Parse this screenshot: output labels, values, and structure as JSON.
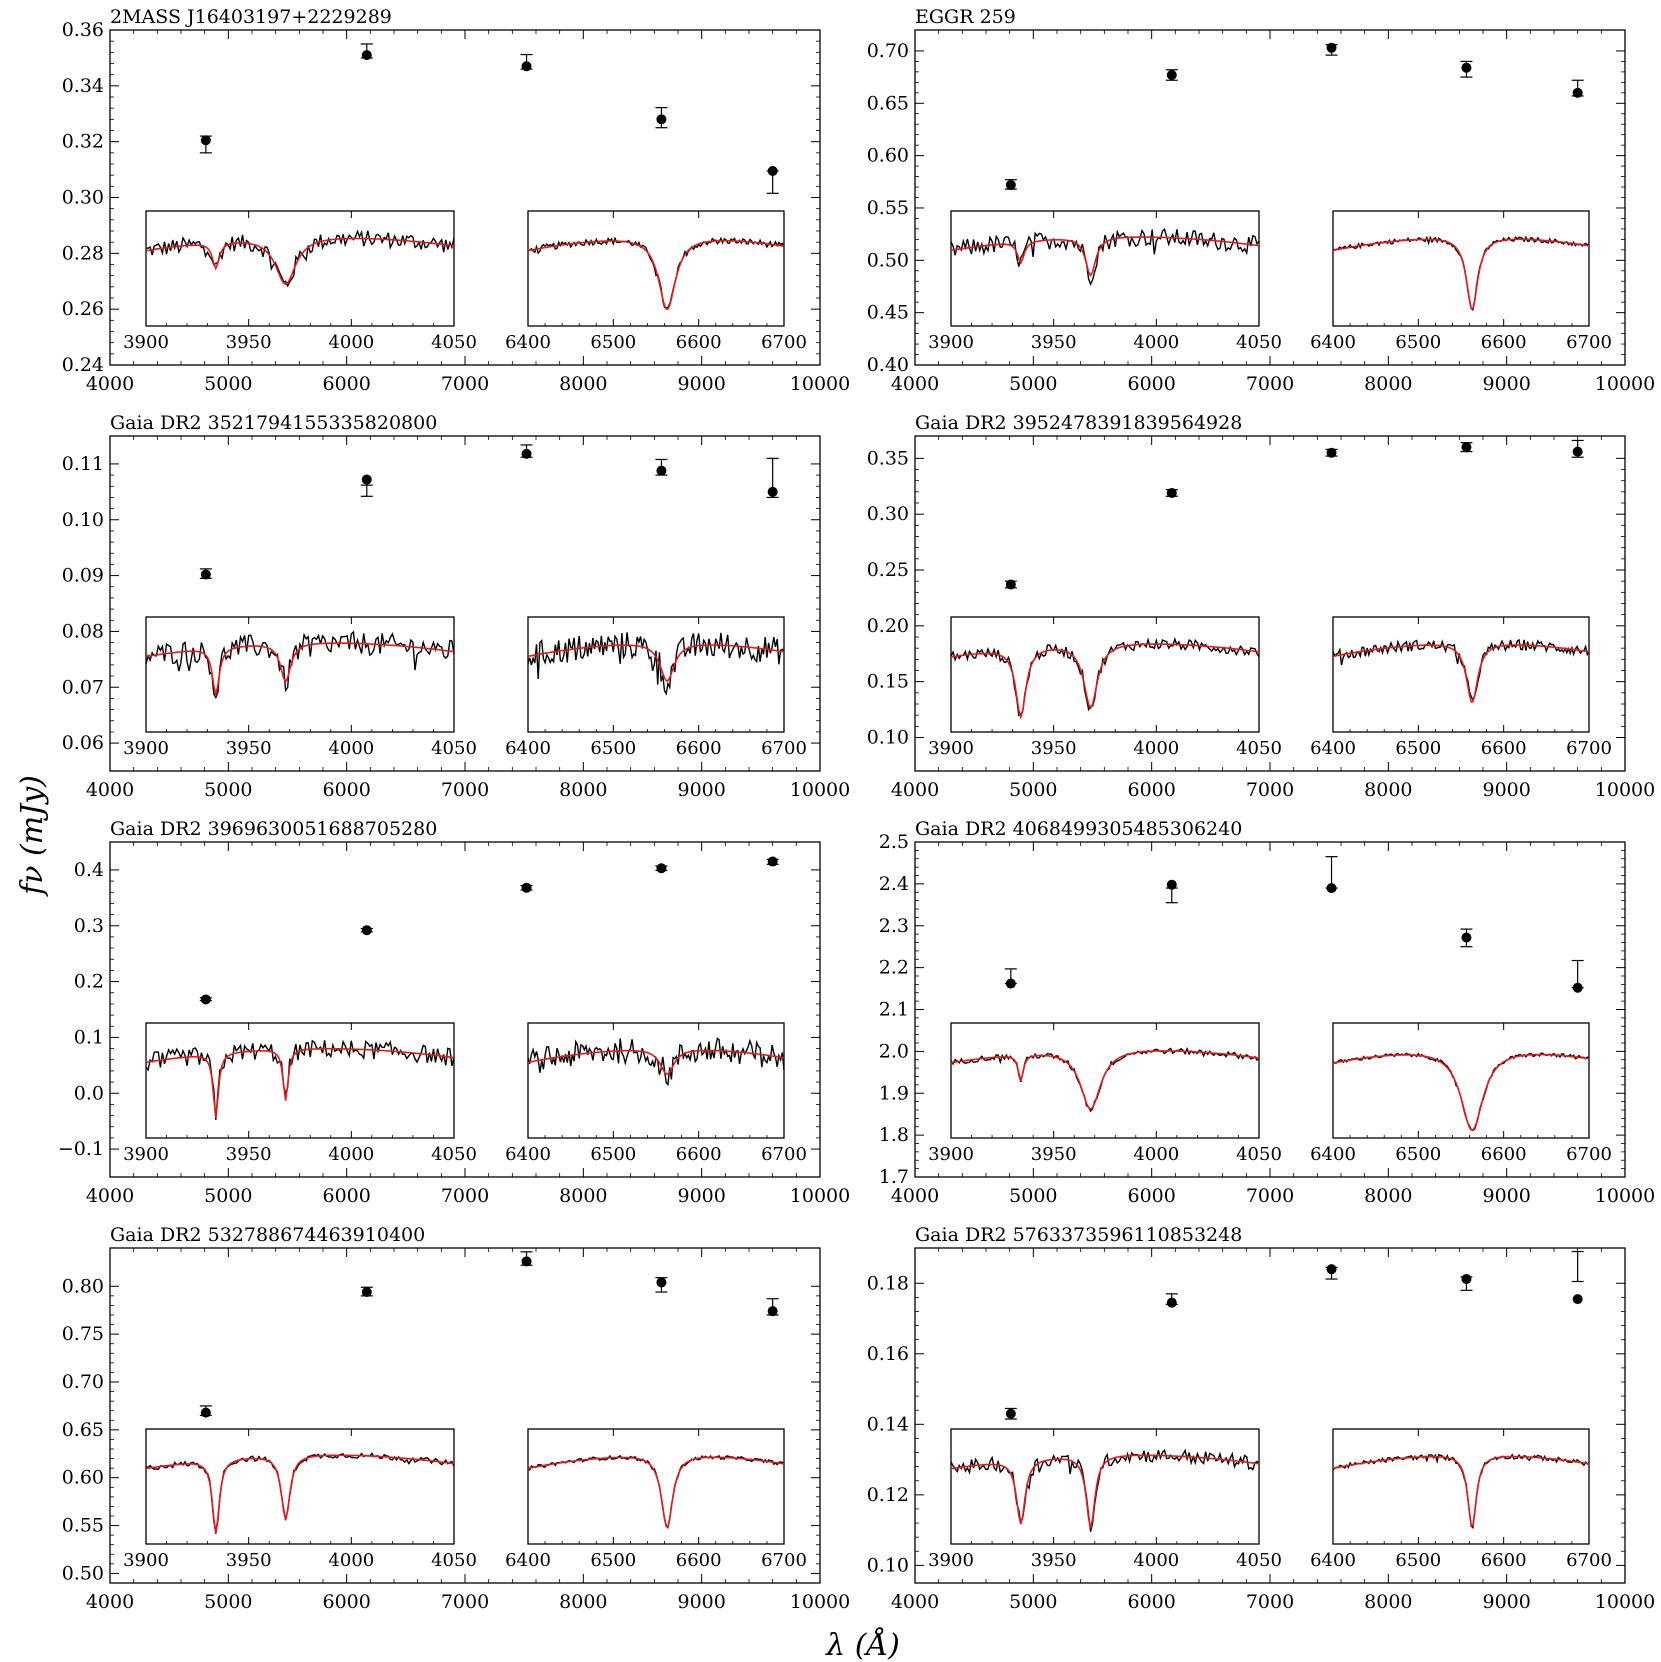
{
  "figure": {
    "ylabel": "fν (mJy)",
    "xlabel": "λ (Å)"
  },
  "chart_data": [
    {
      "type": "scatter",
      "title": "2MASS J16403197+2229289",
      "xlim": [
        4000,
        10000
      ],
      "xticks": [
        4000,
        5000,
        6000,
        7000,
        8000,
        9000,
        10000
      ],
      "ylim": [
        0.24,
        0.36
      ],
      "yticks": [
        0.24,
        0.26,
        0.28,
        0.3,
        0.32,
        0.34,
        0.36
      ],
      "yticklabels": [
        "0.24",
        "0.26",
        "0.28",
        "0.30",
        "0.32",
        "0.34",
        "0.36"
      ],
      "points": [
        {
          "x": 4810,
          "y": 0.3205,
          "err_lo": 0.316,
          "err_hi": 0.322
        },
        {
          "x": 6170,
          "y": 0.351,
          "err_lo": 0.35,
          "err_hi": 0.355
        },
        {
          "x": 7520,
          "y": 0.347,
          "err_lo": 0.346,
          "err_hi": 0.3512
        },
        {
          "x": 8660,
          "y": 0.328,
          "err_lo": 0.325,
          "err_hi": 0.3322
        },
        {
          "x": 9600,
          "y": 0.3095,
          "err_lo": 0.3015,
          "err_hi": 0.3095
        }
      ],
      "insets": [
        {
          "xlim": [
            3900,
            4050
          ],
          "xticks": [
            3900,
            3950,
            4000,
            4050
          ],
          "lines": [
            {
              "center": 3934,
              "depth": 0.3,
              "width": 2
            },
            {
              "center": 3968,
              "depth": 0.55,
              "width": 6
            }
          ],
          "noise": 0.18
        },
        {
          "xlim": [
            6400,
            6700
          ],
          "xticks": [
            6400,
            6500,
            6600,
            6700
          ],
          "lines": [
            {
              "center": 6563,
              "depth": 0.85,
              "width": 6
            }
          ],
          "noise": 0.07
        }
      ]
    },
    {
      "type": "scatter",
      "title": "EGGR 259",
      "xlim": [
        4000,
        10000
      ],
      "xticks": [
        4000,
        5000,
        6000,
        7000,
        8000,
        9000,
        10000
      ],
      "ylim": [
        0.4,
        0.72
      ],
      "yticks": [
        0.4,
        0.45,
        0.5,
        0.55,
        0.6,
        0.65,
        0.7
      ],
      "yticklabels": [
        "0.40",
        "0.45",
        "0.50",
        "0.55",
        "0.60",
        "0.65",
        "0.70"
      ],
      "points": [
        {
          "x": 4810,
          "y": 0.572,
          "err_lo": 0.568,
          "err_hi": 0.577
        },
        {
          "x": 6170,
          "y": 0.677,
          "err_lo": 0.672,
          "err_hi": 0.682
        },
        {
          "x": 7520,
          "y": 0.703,
          "err_lo": 0.696,
          "err_hi": 0.706
        },
        {
          "x": 8660,
          "y": 0.684,
          "err_lo": 0.675,
          "err_hi": 0.69
        },
        {
          "x": 9600,
          "y": 0.66,
          "err_lo": 0.657,
          "err_hi": 0.672
        }
      ],
      "insets": [
        {
          "xlim": [
            3900,
            4050
          ],
          "xticks": [
            3900,
            3950,
            4000,
            4050
          ],
          "lines": [
            {
              "center": 3934,
              "depth": 0.25,
              "width": 2
            },
            {
              "center": 3968,
              "depth": 0.45,
              "width": 3
            }
          ],
          "noise": 0.2
        },
        {
          "xlim": [
            6400,
            6700
          ],
          "xticks": [
            6400,
            6500,
            6600,
            6700
          ],
          "lines": [
            {
              "center": 6563,
              "depth": 0.85,
              "width": 4
            }
          ],
          "noise": 0.05
        }
      ]
    },
    {
      "type": "scatter",
      "title": "Gaia DR2 3521794155335820800",
      "xlim": [
        4000,
        10000
      ],
      "xticks": [
        4000,
        5000,
        6000,
        7000,
        8000,
        9000,
        10000
      ],
      "ylim": [
        0.055,
        0.115
      ],
      "yticks": [
        0.06,
        0.07,
        0.08,
        0.09,
        0.1,
        0.11
      ],
      "yticklabels": [
        "0.06",
        "0.07",
        "0.08",
        "0.09",
        "0.10",
        "0.11"
      ],
      "points": [
        {
          "x": 4810,
          "y": 0.0902,
          "err_lo": 0.0895,
          "err_hi": 0.0912
        },
        {
          "x": 6170,
          "y": 0.1072,
          "err_lo": 0.1042,
          "err_hi": 0.1062
        },
        {
          "x": 7520,
          "y": 0.1118,
          "err_lo": 0.1112,
          "err_hi": 0.1134
        },
        {
          "x": 8660,
          "y": 0.1088,
          "err_lo": 0.108,
          "err_hi": 0.1108
        },
        {
          "x": 9600,
          "y": 0.105,
          "err_lo": 0.104,
          "err_hi": 0.111
        }
      ],
      "insets": [
        {
          "xlim": [
            3900,
            4050
          ],
          "xticks": [
            3900,
            3950,
            4000,
            4050
          ],
          "lines": [
            {
              "center": 3934,
              "depth": 0.55,
              "width": 2
            },
            {
              "center": 3968,
              "depth": 0.45,
              "width": 3
            }
          ],
          "noise": 0.25
        },
        {
          "xlim": [
            6400,
            6700
          ],
          "xticks": [
            6400,
            6500,
            6600,
            6700
          ],
          "lines": [
            {
              "center": 6563,
              "depth": 0.45,
              "width": 5
            }
          ],
          "noise": 0.3
        }
      ]
    },
    {
      "type": "scatter",
      "title": "Gaia DR2 3952478391839564928",
      "xlim": [
        4000,
        10000
      ],
      "xticks": [
        4000,
        5000,
        6000,
        7000,
        8000,
        9000,
        10000
      ],
      "ylim": [
        0.07,
        0.37
      ],
      "yticks": [
        0.1,
        0.15,
        0.2,
        0.25,
        0.3,
        0.35
      ],
      "yticklabels": [
        "0.10",
        "0.15",
        "0.20",
        "0.25",
        "0.30",
        "0.35"
      ],
      "points": [
        {
          "x": 4810,
          "y": 0.237,
          "err_lo": 0.234,
          "err_hi": 0.24
        },
        {
          "x": 6170,
          "y": 0.319,
          "err_lo": 0.316,
          "err_hi": 0.322
        },
        {
          "x": 7520,
          "y": 0.355,
          "err_lo": 0.352,
          "err_hi": 0.358
        },
        {
          "x": 8660,
          "y": 0.36,
          "err_lo": 0.356,
          "err_hi": 0.364
        },
        {
          "x": 9600,
          "y": 0.356,
          "err_lo": 0.351,
          "err_hi": 0.366
        }
      ],
      "insets": [
        {
          "xlim": [
            3900,
            4050
          ],
          "xticks": [
            3900,
            3950,
            4000,
            4050
          ],
          "lines": [
            {
              "center": 3934,
              "depth": 0.8,
              "width": 3
            },
            {
              "center": 3968,
              "depth": 0.75,
              "width": 4
            }
          ],
          "noise": 0.12
        },
        {
          "xlim": [
            6400,
            6700
          ],
          "xticks": [
            6400,
            6500,
            6600,
            6700
          ],
          "lines": [
            {
              "center": 6563,
              "depth": 0.7,
              "width": 4
            }
          ],
          "noise": 0.12
        }
      ]
    },
    {
      "type": "scatter",
      "title": "Gaia DR2 3969630051688705280",
      "xlim": [
        4000,
        10000
      ],
      "xticks": [
        4000,
        5000,
        6000,
        7000,
        8000,
        9000,
        10000
      ],
      "ylim": [
        -0.15,
        0.45
      ],
      "yticks": [
        -0.1,
        0.0,
        0.1,
        0.2,
        0.3,
        0.4
      ],
      "yticklabels": [
        "−0.1",
        "0.0",
        "0.1",
        "0.2",
        "0.3",
        "0.4"
      ],
      "points": [
        {
          "x": 4810,
          "y": 0.168,
          "err_lo": 0.166,
          "err_hi": 0.171
        },
        {
          "x": 6170,
          "y": 0.292,
          "err_lo": 0.289,
          "err_hi": 0.295
        },
        {
          "x": 7520,
          "y": 0.368,
          "err_lo": 0.364,
          "err_hi": 0.372
        },
        {
          "x": 8660,
          "y": 0.403,
          "err_lo": 0.399,
          "err_hi": 0.407
        },
        {
          "x": 9600,
          "y": 0.415,
          "err_lo": 0.41,
          "err_hi": 0.419
        }
      ],
      "insets": [
        {
          "xlim": [
            3900,
            4050
          ],
          "xticks": [
            3900,
            3950,
            4000,
            4050
          ],
          "lines": [
            {
              "center": 3934,
              "depth": 0.75,
              "width": 1.5
            },
            {
              "center": 3968,
              "depth": 0.6,
              "width": 1.5
            }
          ],
          "noise": 0.2
        },
        {
          "xlim": [
            6400,
            6700
          ],
          "xticks": [
            6400,
            6500,
            6600,
            6700
          ],
          "lines": [
            {
              "center": 6563,
              "depth": 0.3,
              "width": 5
            }
          ],
          "noise": 0.28
        }
      ]
    },
    {
      "type": "scatter",
      "title": "Gaia DR2 4068499305485306240",
      "xlim": [
        4000,
        10000
      ],
      "xticks": [
        4000,
        5000,
        6000,
        7000,
        8000,
        9000,
        10000
      ],
      "ylim": [
        1.7,
        2.5
      ],
      "yticks": [
        1.7,
        1.8,
        1.9,
        2.0,
        2.1,
        2.2,
        2.3,
        2.4,
        2.5
      ],
      "yticklabels": [
        "1.7",
        "1.8",
        "1.9",
        "2.0",
        "2.1",
        "2.2",
        "2.3",
        "2.4",
        "2.5"
      ],
      "points": [
        {
          "x": 4810,
          "y": 2.162,
          "err_lo": 2.162,
          "err_hi": 2.197
        },
        {
          "x": 6170,
          "y": 2.398,
          "err_lo": 2.355,
          "err_hi": 2.39
        },
        {
          "x": 7520,
          "y": 2.39,
          "err_lo": 2.39,
          "err_hi": 2.465
        },
        {
          "x": 8660,
          "y": 2.272,
          "err_lo": 2.25,
          "err_hi": 2.292
        },
        {
          "x": 9600,
          "y": 2.152,
          "err_lo": 2.152,
          "err_hi": 2.217
        }
      ],
      "insets": [
        {
          "xlim": [
            3900,
            4050
          ],
          "xticks": [
            3900,
            3950,
            4000,
            4050
          ],
          "lines": [
            {
              "center": 3934,
              "depth": 0.3,
              "width": 1.5
            },
            {
              "center": 3968,
              "depth": 0.7,
              "width": 6
            }
          ],
          "noise": 0.06
        },
        {
          "xlim": [
            6400,
            6700
          ],
          "xticks": [
            6400,
            6500,
            6600,
            6700
          ],
          "lines": [
            {
              "center": 6563,
              "depth": 0.95,
              "width": 8
            }
          ],
          "noise": 0.04
        }
      ]
    },
    {
      "type": "scatter",
      "title": "Gaia DR2 532788674463910400",
      "xlim": [
        4000,
        10000
      ],
      "xticks": [
        4000,
        5000,
        6000,
        7000,
        8000,
        9000,
        10000
      ],
      "ylim": [
        0.49,
        0.84
      ],
      "yticks": [
        0.5,
        0.55,
        0.6,
        0.65,
        0.7,
        0.75,
        0.8
      ],
      "yticklabels": [
        "0.50",
        "0.55",
        "0.60",
        "0.65",
        "0.70",
        "0.75",
        "0.80"
      ],
      "points": [
        {
          "x": 4810,
          "y": 0.668,
          "err_lo": 0.665,
          "err_hi": 0.675
        },
        {
          "x": 6170,
          "y": 0.794,
          "err_lo": 0.79,
          "err_hi": 0.799
        },
        {
          "x": 7520,
          "y": 0.826,
          "err_lo": 0.822,
          "err_hi": 0.836
        },
        {
          "x": 8660,
          "y": 0.804,
          "err_lo": 0.794,
          "err_hi": 0.809
        },
        {
          "x": 9600,
          "y": 0.774,
          "err_lo": 0.77,
          "err_hi": 0.787
        }
      ],
      "insets": [
        {
          "xlim": [
            3900,
            4050
          ],
          "xticks": [
            3900,
            3950,
            4000,
            4050
          ],
          "lines": [
            {
              "center": 3934,
              "depth": 0.85,
              "width": 2
            },
            {
              "center": 3968,
              "depth": 0.75,
              "width": 2.5
            }
          ],
          "noise": 0.06
        },
        {
          "xlim": [
            6400,
            6700
          ],
          "xticks": [
            6400,
            6500,
            6600,
            6700
          ],
          "lines": [
            {
              "center": 6563,
              "depth": 0.85,
              "width": 4
            }
          ],
          "noise": 0.04
        }
      ]
    },
    {
      "type": "scatter",
      "title": "Gaia DR2 5763373596110853248",
      "xlim": [
        4000,
        10000
      ],
      "xticks": [
        4000,
        5000,
        6000,
        7000,
        8000,
        9000,
        10000
      ],
      "ylim": [
        0.095,
        0.19
      ],
      "yticks": [
        0.1,
        0.12,
        0.14,
        0.16,
        0.18
      ],
      "yticklabels": [
        "0.10",
        "0.12",
        "0.14",
        "0.16",
        "0.18"
      ],
      "points": [
        {
          "x": 4810,
          "y": 0.143,
          "err_lo": 0.1415,
          "err_hi": 0.1445
        },
        {
          "x": 6170,
          "y": 0.1745,
          "err_lo": 0.174,
          "err_hi": 0.177
        },
        {
          "x": 7520,
          "y": 0.184,
          "err_lo": 0.1812,
          "err_hi": 0.1845
        },
        {
          "x": 8660,
          "y": 0.1812,
          "err_lo": 0.178,
          "err_hi": 0.1818
        },
        {
          "x": 9600,
          "y": 0.1755,
          "err_lo": 0.1805,
          "err_hi": 0.189
        }
      ],
      "insets": [
        {
          "xlim": [
            3900,
            4050
          ],
          "xticks": [
            3900,
            3950,
            4000,
            4050
          ],
          "lines": [
            {
              "center": 3934,
              "depth": 0.75,
              "width": 2.5
            },
            {
              "center": 3968,
              "depth": 0.85,
              "width": 2.5
            }
          ],
          "noise": 0.15
        },
        {
          "xlim": [
            6400,
            6700
          ],
          "xticks": [
            6400,
            6500,
            6600,
            6700
          ],
          "lines": [
            {
              "center": 6563,
              "depth": 0.85,
              "width": 3
            }
          ],
          "noise": 0.05
        }
      ]
    }
  ]
}
